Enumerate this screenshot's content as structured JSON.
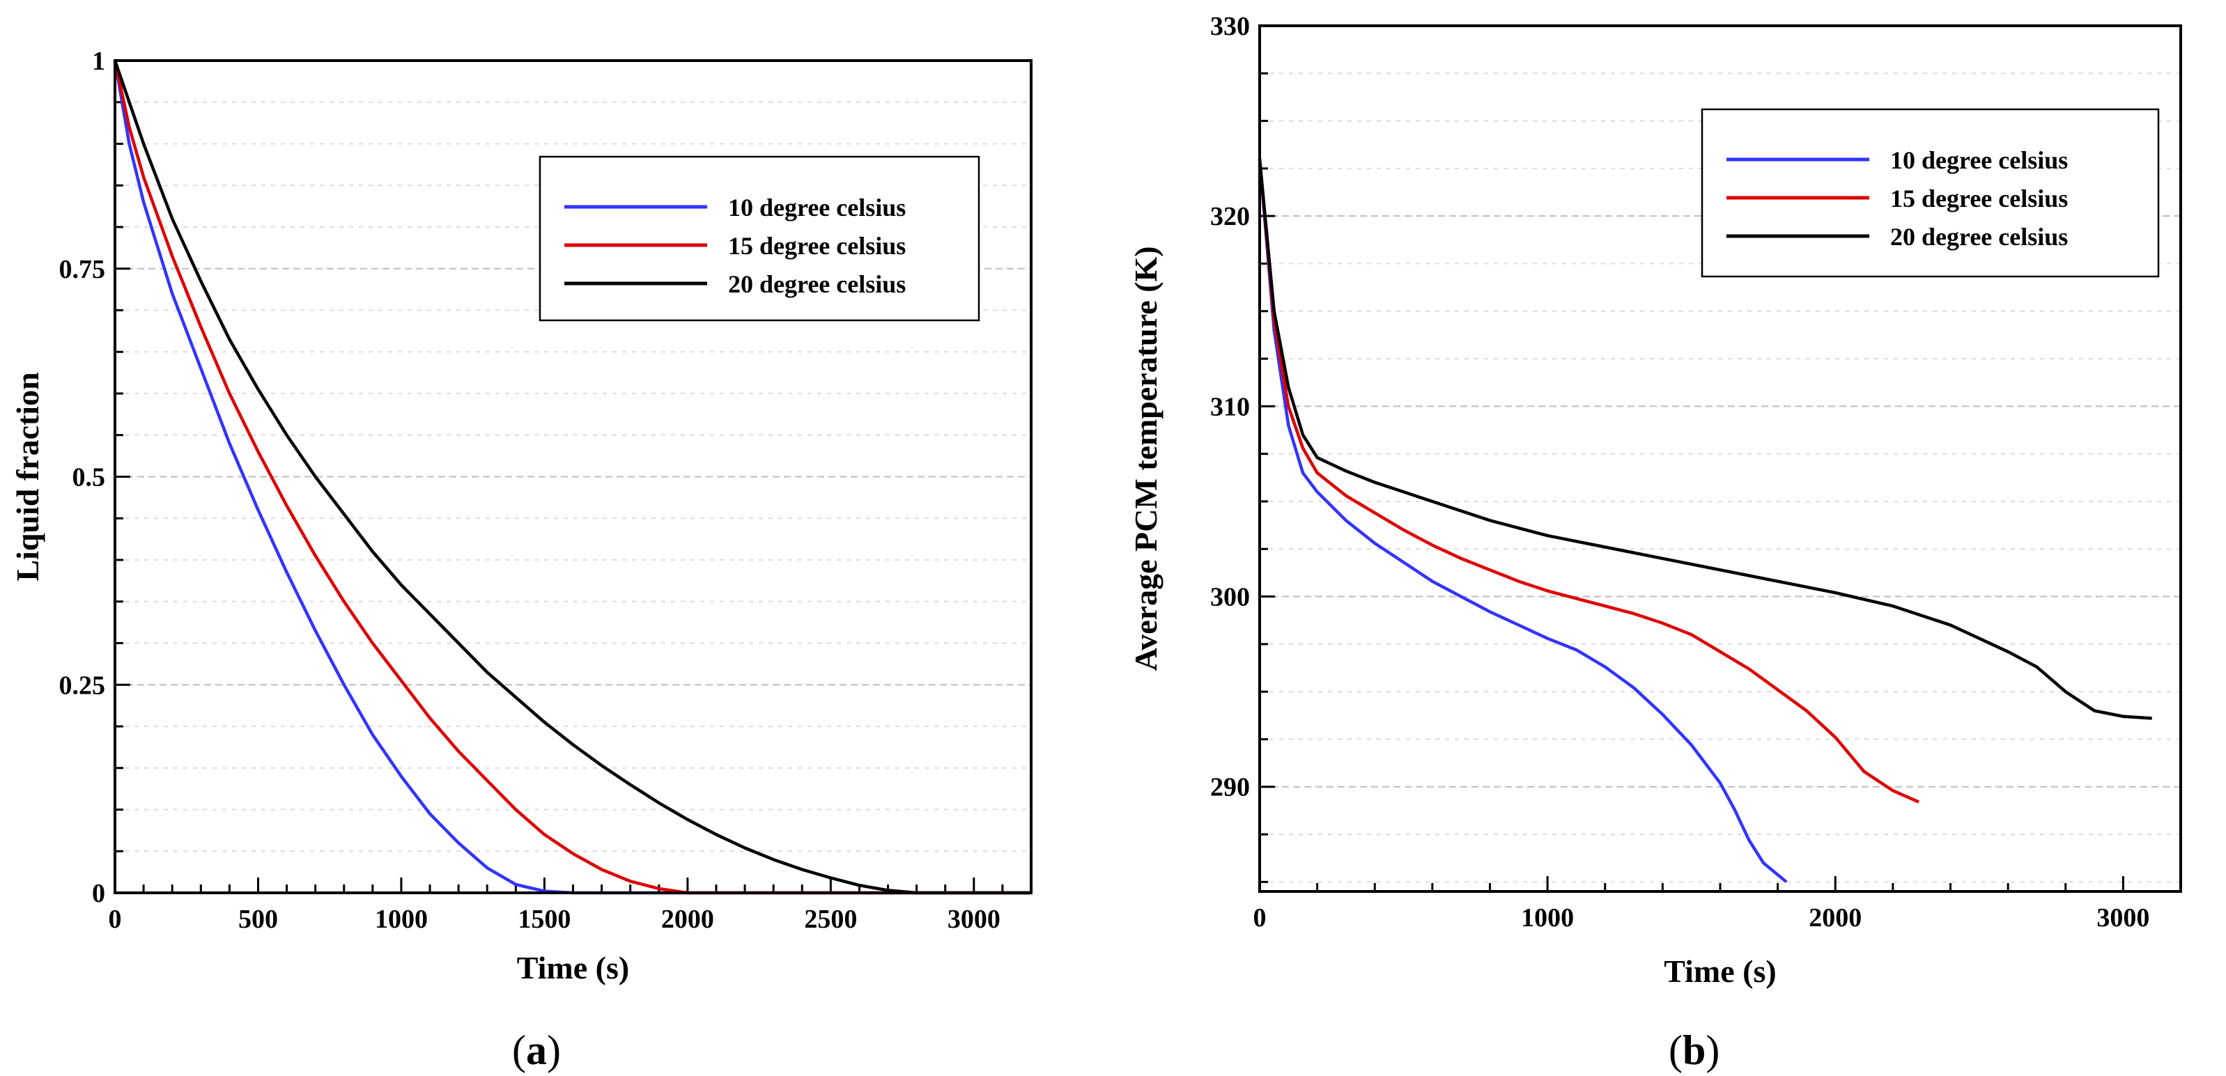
{
  "chart_data": [
    {
      "panel": "a",
      "type": "line",
      "caption": {
        "open": "(",
        "letter": "a",
        "close": ")"
      },
      "title": "",
      "xlabel": "Time (s)",
      "ylabel": "Liquid fraction",
      "xlim": [
        0,
        3200
      ],
      "ylim": [
        0,
        1
      ],
      "xticks": [
        0,
        500,
        1000,
        1500,
        2000,
        2500,
        3000
      ],
      "xticklabels": [
        "0",
        "500",
        "1000",
        "1500",
        "2000",
        "2500",
        "3000"
      ],
      "yticks": [
        0,
        0.25,
        0.5,
        0.75,
        1
      ],
      "yticklabels": [
        "0",
        "0.25",
        "0.5",
        "0.75",
        "1"
      ],
      "grid": "horizontal dashed",
      "legend_position": "top-right",
      "series": [
        {
          "name": "10 degree celsius",
          "color": "#3333ff",
          "points": [
            [
              0,
              1
            ],
            [
              50,
              0.9
            ],
            [
              100,
              0.83
            ],
            [
              200,
              0.72
            ],
            [
              300,
              0.63
            ],
            [
              400,
              0.54
            ],
            [
              500,
              0.46
            ],
            [
              600,
              0.385
            ],
            [
              700,
              0.315
            ],
            [
              800,
              0.25
            ],
            [
              900,
              0.19
            ],
            [
              1000,
              0.14
            ],
            [
              1100,
              0.095
            ],
            [
              1200,
              0.06
            ],
            [
              1300,
              0.03
            ],
            [
              1400,
              0.01
            ],
            [
              1500,
              0.002
            ],
            [
              1600,
              0
            ],
            [
              3200,
              0
            ]
          ]
        },
        {
          "name": "15 degree celsius",
          "color": "#dd0000",
          "points": [
            [
              0,
              1
            ],
            [
              50,
              0.92
            ],
            [
              100,
              0.86
            ],
            [
              200,
              0.765
            ],
            [
              300,
              0.68
            ],
            [
              400,
              0.6
            ],
            [
              500,
              0.53
            ],
            [
              600,
              0.465
            ],
            [
              700,
              0.405
            ],
            [
              800,
              0.35
            ],
            [
              900,
              0.3
            ],
            [
              1000,
              0.255
            ],
            [
              1100,
              0.21
            ],
            [
              1200,
              0.17
            ],
            [
              1300,
              0.135
            ],
            [
              1400,
              0.1
            ],
            [
              1500,
              0.07
            ],
            [
              1600,
              0.047
            ],
            [
              1700,
              0.028
            ],
            [
              1800,
              0.014
            ],
            [
              1900,
              0.005
            ],
            [
              2000,
              0
            ],
            [
              3200,
              0
            ]
          ]
        },
        {
          "name": "20 degree celsius",
          "color": "#000000",
          "points": [
            [
              0,
              1
            ],
            [
              100,
              0.9
            ],
            [
              200,
              0.81
            ],
            [
              300,
              0.735
            ],
            [
              400,
              0.665
            ],
            [
              500,
              0.605
            ],
            [
              600,
              0.55
            ],
            [
              700,
              0.5
            ],
            [
              800,
              0.455
            ],
            [
              900,
              0.41
            ],
            [
              1000,
              0.37
            ],
            [
              1100,
              0.335
            ],
            [
              1200,
              0.3
            ],
            [
              1300,
              0.265
            ],
            [
              1400,
              0.235
            ],
            [
              1500,
              0.205
            ],
            [
              1600,
              0.178
            ],
            [
              1700,
              0.153
            ],
            [
              1800,
              0.13
            ],
            [
              1900,
              0.108
            ],
            [
              2000,
              0.088
            ],
            [
              2100,
              0.07
            ],
            [
              2200,
              0.054
            ],
            [
              2300,
              0.04
            ],
            [
              2400,
              0.028
            ],
            [
              2500,
              0.018
            ],
            [
              2600,
              0.009
            ],
            [
              2700,
              0.003
            ],
            [
              2800,
              0
            ],
            [
              3200,
              0
            ]
          ]
        }
      ]
    },
    {
      "panel": "b",
      "type": "line",
      "caption": {
        "open": "(",
        "letter": "b",
        "close": ")"
      },
      "title": "",
      "xlabel": "Time (s)",
      "ylabel": "Average PCM temperature (K)",
      "xlim": [
        0,
        3200
      ],
      "ylim": [
        284.5,
        330
      ],
      "xticks": [
        0,
        1000,
        2000,
        3000
      ],
      "xticklabels": [
        "0",
        "1000",
        "2000",
        "3000"
      ],
      "yticks": [
        290,
        300,
        310,
        320,
        330
      ],
      "yticklabels": [
        "290",
        "300",
        "310",
        "320",
        "330"
      ],
      "grid": "horizontal dashed",
      "legend_position": "top-right",
      "series": [
        {
          "name": "10 degree celsius",
          "color": "#3333ff",
          "points": [
            [
              0,
              323
            ],
            [
              50,
              314
            ],
            [
              100,
              309
            ],
            [
              150,
              306.5
            ],
            [
              200,
              305.5
            ],
            [
              300,
              304
            ],
            [
              400,
              302.8
            ],
            [
              500,
              301.8
            ],
            [
              600,
              300.8
            ],
            [
              700,
              300
            ],
            [
              800,
              299.2
            ],
            [
              900,
              298.5
            ],
            [
              1000,
              297.8
            ],
            [
              1100,
              297.2
            ],
            [
              1200,
              296.3
            ],
            [
              1300,
              295.2
            ],
            [
              1400,
              293.8
            ],
            [
              1500,
              292.2
            ],
            [
              1600,
              290.2
            ],
            [
              1650,
              288.8
            ],
            [
              1700,
              287.2
            ],
            [
              1750,
              286
            ],
            [
              1830,
              285
            ]
          ]
        },
        {
          "name": "15 degree celsius",
          "color": "#dd0000",
          "points": [
            [
              0,
              323
            ],
            [
              50,
              314.5
            ],
            [
              100,
              310
            ],
            [
              150,
              307.8
            ],
            [
              200,
              306.5
            ],
            [
              300,
              305.3
            ],
            [
              400,
              304.4
            ],
            [
              500,
              303.5
            ],
            [
              600,
              302.7
            ],
            [
              700,
              302
            ],
            [
              800,
              301.4
            ],
            [
              900,
              300.8
            ],
            [
              1000,
              300.3
            ],
            [
              1100,
              299.9
            ],
            [
              1200,
              299.5
            ],
            [
              1300,
              299.1
            ],
            [
              1400,
              298.6
            ],
            [
              1500,
              298
            ],
            [
              1600,
              297.1
            ],
            [
              1700,
              296.2
            ],
            [
              1800,
              295.1
            ],
            [
              1900,
              294
            ],
            [
              2000,
              292.6
            ],
            [
              2100,
              290.8
            ],
            [
              2200,
              289.8
            ],
            [
              2290,
              289.2
            ]
          ]
        },
        {
          "name": "20 degree celsius",
          "color": "#000000",
          "points": [
            [
              0,
              323
            ],
            [
              50,
              315
            ],
            [
              100,
              311
            ],
            [
              150,
              308.5
            ],
            [
              200,
              307.3
            ],
            [
              300,
              306.6
            ],
            [
              400,
              306
            ],
            [
              500,
              305.5
            ],
            [
              600,
              305
            ],
            [
              700,
              304.5
            ],
            [
              800,
              304
            ],
            [
              900,
              303.6
            ],
            [
              1000,
              303.2
            ],
            [
              1200,
              302.6
            ],
            [
              1400,
              302
            ],
            [
              1600,
              301.4
            ],
            [
              1800,
              300.8
            ],
            [
              2000,
              300.2
            ],
            [
              2200,
              299.5
            ],
            [
              2400,
              298.5
            ],
            [
              2600,
              297.1
            ],
            [
              2700,
              296.3
            ],
            [
              2800,
              295
            ],
            [
              2900,
              294
            ],
            [
              3000,
              293.7
            ],
            [
              3100,
              293.6
            ]
          ]
        }
      ]
    }
  ]
}
